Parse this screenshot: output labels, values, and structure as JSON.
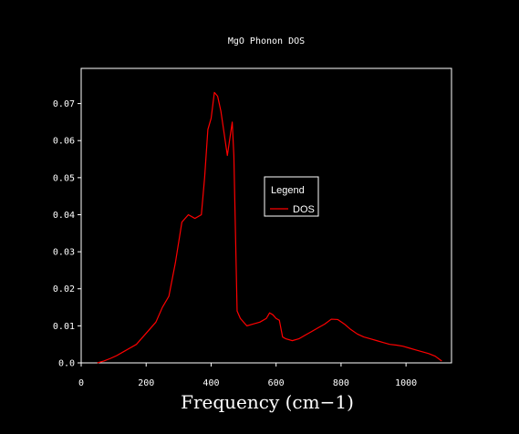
{
  "chart_data": {
    "type": "line",
    "title": "MgO Phonon DOS",
    "xlabel": "Frequency (cm−1)",
    "ylabel": "",
    "xlim": [
      0,
      1140
    ],
    "ylim": [
      0,
      0.0795
    ],
    "xticks": [
      0,
      200,
      400,
      600,
      800,
      1000
    ],
    "yticks": [
      0.0,
      0.01,
      0.02,
      0.03,
      0.04,
      0.05,
      0.06,
      0.07
    ],
    "ytick_labels": [
      "0.0",
      "0.01",
      "0.02",
      "0.03",
      "0.04",
      "0.05",
      "0.06",
      "0.07"
    ],
    "grid": false,
    "legend": {
      "title": "Legend",
      "position": "center-right"
    },
    "colors": {
      "background": "#000000",
      "axes": "#ffffff",
      "text": "#ffffff",
      "series": "#ff0000"
    },
    "series": [
      {
        "name": "DOS",
        "x": [
          50,
          70,
          90,
          110,
          130,
          150,
          170,
          190,
          210,
          230,
          250,
          270,
          290,
          310,
          330,
          350,
          370,
          380,
          390,
          400,
          410,
          420,
          430,
          440,
          450,
          460,
          465,
          470,
          480,
          490,
          510,
          530,
          550,
          570,
          580,
          590,
          600,
          610,
          620,
          630,
          650,
          670,
          690,
          710,
          730,
          750,
          770,
          790,
          810,
          830,
          850,
          870,
          890,
          910,
          930,
          950,
          970,
          990,
          1010,
          1030,
          1050,
          1070,
          1090,
          1110
        ],
        "values": [
          0.0,
          0.0005,
          0.0012,
          0.002,
          0.003,
          0.004,
          0.005,
          0.007,
          0.009,
          0.011,
          0.015,
          0.018,
          0.027,
          0.038,
          0.04,
          0.039,
          0.04,
          0.05,
          0.063,
          0.066,
          0.073,
          0.072,
          0.068,
          0.062,
          0.056,
          0.062,
          0.065,
          0.056,
          0.014,
          0.012,
          0.01,
          0.0105,
          0.011,
          0.012,
          0.0135,
          0.013,
          0.012,
          0.0115,
          0.007,
          0.0065,
          0.006,
          0.0065,
          0.0075,
          0.0085,
          0.0095,
          0.0105,
          0.0118,
          0.0117,
          0.0105,
          0.009,
          0.0078,
          0.007,
          0.0065,
          0.006,
          0.0055,
          0.005,
          0.0048,
          0.0045,
          0.004,
          0.0035,
          0.003,
          0.0025,
          0.0018,
          0.0005
        ]
      }
    ]
  }
}
